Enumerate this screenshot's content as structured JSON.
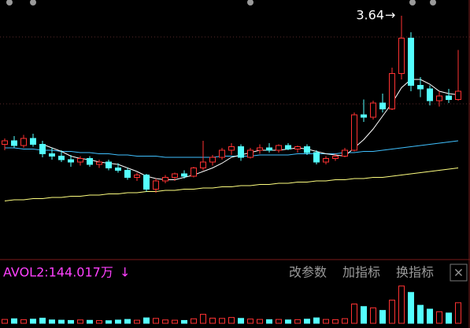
{
  "chart_data": [
    {
      "type": "candlestick",
      "open": [
        2.55,
        2.58,
        2.54,
        2.6,
        2.55,
        2.47,
        2.45,
        2.42,
        2.4,
        2.43,
        2.38,
        2.4,
        2.35,
        2.33,
        2.27,
        2.29,
        2.17,
        2.24,
        2.27,
        2.3,
        2.28,
        2.35,
        2.4,
        2.44,
        2.5,
        2.53,
        2.44,
        2.5,
        2.52,
        2.5,
        2.54,
        2.51,
        2.53,
        2.48,
        2.4,
        2.43,
        2.45,
        2.5,
        2.8,
        2.78,
        2.9,
        2.85,
        3.15,
        3.45,
        3.05,
        3.02,
        2.92,
        2.96,
        2.93
      ],
      "high": [
        2.6,
        2.62,
        2.63,
        2.64,
        2.58,
        2.52,
        2.5,
        2.46,
        2.45,
        2.45,
        2.42,
        2.42,
        2.39,
        2.35,
        2.31,
        2.3,
        2.26,
        2.29,
        2.31,
        2.33,
        2.36,
        2.58,
        2.46,
        2.52,
        2.56,
        2.55,
        2.52,
        2.55,
        2.56,
        2.55,
        2.56,
        2.54,
        2.55,
        2.5,
        2.45,
        2.47,
        2.52,
        2.82,
        2.93,
        2.92,
        2.98,
        3.2,
        3.64,
        3.5,
        3.12,
        3.05,
        3.0,
        3.02,
        3.35
      ],
      "low": [
        2.5,
        2.52,
        2.52,
        2.53,
        2.44,
        2.42,
        2.4,
        2.36,
        2.37,
        2.36,
        2.35,
        2.33,
        2.31,
        2.25,
        2.24,
        2.15,
        2.14,
        2.22,
        2.24,
        2.26,
        2.27,
        2.33,
        2.37,
        2.42,
        2.46,
        2.41,
        2.43,
        2.47,
        2.48,
        2.48,
        2.5,
        2.48,
        2.46,
        2.38,
        2.38,
        2.41,
        2.44,
        2.49,
        2.74,
        2.76,
        2.82,
        2.84,
        3.1,
        3.0,
        2.95,
        2.88,
        2.87,
        2.9,
        2.92
      ],
      "close": [
        2.58,
        2.54,
        2.6,
        2.55,
        2.47,
        2.45,
        2.42,
        2.4,
        2.43,
        2.38,
        2.4,
        2.35,
        2.33,
        2.27,
        2.29,
        2.17,
        2.24,
        2.27,
        2.3,
        2.28,
        2.35,
        2.4,
        2.44,
        2.5,
        2.53,
        2.44,
        2.5,
        2.52,
        2.5,
        2.54,
        2.51,
        2.53,
        2.48,
        2.4,
        2.43,
        2.45,
        2.5,
        2.8,
        2.78,
        2.9,
        2.85,
        3.15,
        3.45,
        3.05,
        3.02,
        2.92,
        2.96,
        2.93,
        3.0
      ],
      "up_color": "#ff3232",
      "down_color": "#54ffff",
      "ylim": [
        1.6,
        3.76
      ],
      "series": [
        {
          "color": "#ffff80",
          "values": [
            2.07,
            2.08,
            2.08,
            2.09,
            2.09,
            2.1,
            2.1,
            2.11,
            2.11,
            2.12,
            2.12,
            2.13,
            2.13,
            2.14,
            2.14,
            2.15,
            2.15,
            2.16,
            2.16,
            2.17,
            2.17,
            2.18,
            2.18,
            2.19,
            2.19,
            2.2,
            2.2,
            2.21,
            2.21,
            2.22,
            2.22,
            2.23,
            2.23,
            2.24,
            2.24,
            2.25,
            2.25,
            2.26,
            2.26,
            2.27,
            2.27,
            2.28,
            2.29,
            2.3,
            2.31,
            2.32,
            2.33,
            2.34,
            2.35
          ]
        },
        {
          "color": "#40c0ff",
          "values": [
            2.52,
            2.52,
            2.51,
            2.51,
            2.5,
            2.5,
            2.49,
            2.49,
            2.48,
            2.48,
            2.47,
            2.47,
            2.46,
            2.46,
            2.45,
            2.45,
            2.45,
            2.44,
            2.44,
            2.44,
            2.44,
            2.44,
            2.44,
            2.45,
            2.45,
            2.45,
            2.45,
            2.46,
            2.46,
            2.46,
            2.46,
            2.47,
            2.47,
            2.47,
            2.47,
            2.47,
            2.48,
            2.48,
            2.49,
            2.49,
            2.5,
            2.51,
            2.52,
            2.53,
            2.54,
            2.55,
            2.56,
            2.57,
            2.58
          ]
        },
        {
          "color": "#ffffff",
          "values": [
            null,
            null,
            null,
            null,
            2.55,
            2.52,
            2.49,
            2.45,
            2.43,
            2.42,
            2.4,
            2.39,
            2.38,
            2.35,
            2.32,
            2.28,
            2.26,
            2.25,
            2.25,
            2.27,
            2.29,
            2.32,
            2.35,
            2.39,
            2.44,
            2.46,
            2.48,
            2.5,
            2.5,
            2.5,
            2.51,
            2.52,
            2.51,
            2.49,
            2.47,
            2.46,
            2.45,
            2.52,
            2.59,
            2.68,
            2.79,
            2.9,
            3.03,
            3.1,
            3.1,
            3.06,
            3.0,
            2.98,
            2.97
          ]
        }
      ],
      "annotation": {
        "text": "3.64",
        "arrow": "→"
      }
    },
    {
      "type": "volume",
      "indicator_label": "AVOL2:144.017万",
      "indicator_arrow": "↓",
      "label_color": "#ff40ff",
      "values": [
        300,
        350,
        280,
        320,
        400,
        260,
        240,
        220,
        260,
        230,
        210,
        200,
        250,
        300,
        240,
        420,
        380,
        260,
        240,
        220,
        350,
        700,
        400,
        380,
        450,
        380,
        330,
        300,
        280,
        300,
        260,
        280,
        320,
        420,
        300,
        280,
        360,
        1500,
        1300,
        1200,
        1000,
        1800,
        2900,
        2400,
        1400,
        1100,
        900,
        800,
        1600
      ],
      "ylim": [
        0,
        3000
      ]
    }
  ],
  "toolbar": {
    "buttons": [
      "改参数",
      "加指标",
      "换指标"
    ],
    "close": "×"
  }
}
